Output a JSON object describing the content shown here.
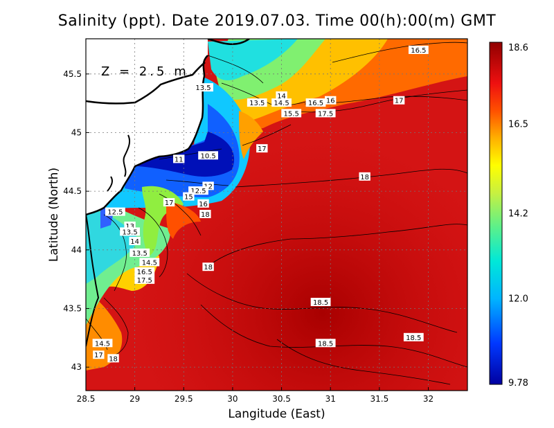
{
  "title": "Salinity (ppt). Date 2019.07.03. Time 00(h):00(m) GMT",
  "xlabel": "Langitude (East)",
  "ylabel": "Latitude (North)",
  "depth_label": "Z = 2.5 m",
  "x_ticks": [
    "28.5",
    "29",
    "29.5",
    "30",
    "30.5",
    "31",
    "31.5",
    "32"
  ],
  "y_ticks": [
    "43",
    "43.5",
    "44",
    "44.5",
    "45",
    "45.5"
  ],
  "colorbar": {
    "labels": [
      "18.6",
      "16.5",
      "14.2",
      "12.0",
      "9.78"
    ],
    "min": 9.78,
    "max": 18.6
  },
  "map": {
    "lon_range": [
      28.5,
      32.4
    ],
    "lat_range": [
      42.8,
      45.8
    ],
    "grid": "dotted"
  },
  "contour_labels": [
    {
      "text": "16.5",
      "lon": 31.9,
      "lat": 45.7
    },
    {
      "text": "13.5",
      "lon": 29.7,
      "lat": 45.38
    },
    {
      "text": "14",
      "lon": 30.5,
      "lat": 45.31
    },
    {
      "text": "13.5",
      "lon": 30.25,
      "lat": 45.25
    },
    {
      "text": "14.5",
      "lon": 30.5,
      "lat": 45.25
    },
    {
      "text": "16.5",
      "lon": 30.85,
      "lat": 45.25
    },
    {
      "text": "16",
      "lon": 31.0,
      "lat": 45.27
    },
    {
      "text": "17",
      "lon": 31.7,
      "lat": 45.27
    },
    {
      "text": "15.5",
      "lon": 30.6,
      "lat": 45.16
    },
    {
      "text": "17.5",
      "lon": 30.95,
      "lat": 45.16
    },
    {
      "text": "17",
      "lon": 30.3,
      "lat": 44.86
    },
    {
      "text": "10.5",
      "lon": 29.75,
      "lat": 44.8
    },
    {
      "text": "11",
      "lon": 29.45,
      "lat": 44.77
    },
    {
      "text": "18",
      "lon": 31.35,
      "lat": 44.62
    },
    {
      "text": "12",
      "lon": 29.75,
      "lat": 44.54
    },
    {
      "text": "12.5",
      "lon": 29.65,
      "lat": 44.5
    },
    {
      "text": "17",
      "lon": 29.35,
      "lat": 44.4
    },
    {
      "text": "15",
      "lon": 29.55,
      "lat": 44.45
    },
    {
      "text": "16",
      "lon": 29.7,
      "lat": 44.39
    },
    {
      "text": "18",
      "lon": 29.72,
      "lat": 44.3
    },
    {
      "text": "12.5",
      "lon": 28.8,
      "lat": 44.32
    },
    {
      "text": "13",
      "lon": 28.95,
      "lat": 44.2
    },
    {
      "text": "13.5",
      "lon": 28.95,
      "lat": 44.15
    },
    {
      "text": "14",
      "lon": 29.0,
      "lat": 44.07
    },
    {
      "text": "13.5",
      "lon": 29.05,
      "lat": 43.97
    },
    {
      "text": "14.5",
      "lon": 29.15,
      "lat": 43.89
    },
    {
      "text": "18",
      "lon": 29.75,
      "lat": 43.85
    },
    {
      "text": "16.5",
      "lon": 29.1,
      "lat": 43.81
    },
    {
      "text": "17.5",
      "lon": 29.1,
      "lat": 43.74
    },
    {
      "text": "18.5",
      "lon": 30.9,
      "lat": 43.55
    },
    {
      "text": "18.5",
      "lon": 31.85,
      "lat": 43.25
    },
    {
      "text": "18.5",
      "lon": 30.95,
      "lat": 43.2
    },
    {
      "text": "14.5",
      "lon": 28.67,
      "lat": 43.2
    },
    {
      "text": "17",
      "lon": 28.63,
      "lat": 43.1
    },
    {
      "text": "18",
      "lon": 28.78,
      "lat": 43.07
    }
  ]
}
